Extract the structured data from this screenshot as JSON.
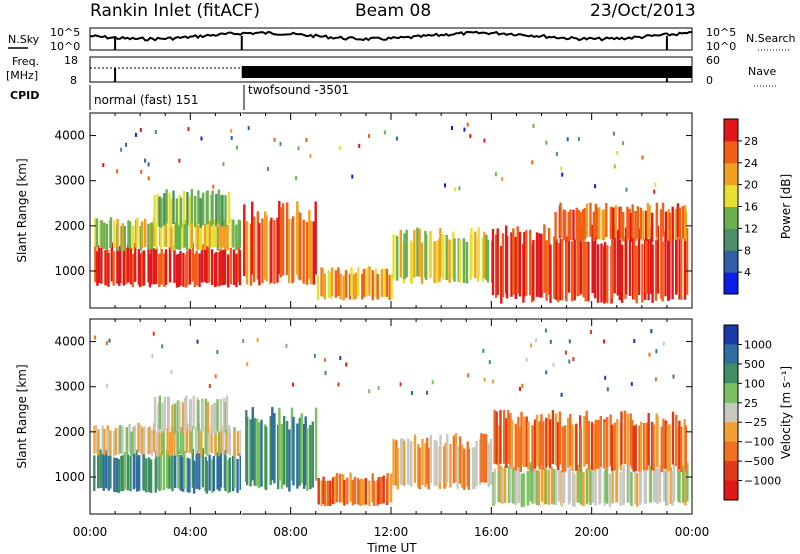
{
  "header": {
    "station": "Rankin Inlet (fitACF)",
    "beam": "Beam 08",
    "date": "23/Oct/2013"
  },
  "summary_panels": {
    "nsky_label": "N.Sky",
    "nsearch_label": "N.Search",
    "scale_top": "10^5",
    "scale_bottom": "10^0",
    "freq_label_line1": "Freq.",
    "freq_label_line2": "[MHz]",
    "freq_top": "18",
    "freq_bottom": "8",
    "nave_label": "Nave",
    "nave_top": "60",
    "nave_bottom": "0",
    "cpid_label": "CPID",
    "cpid_segments": [
      {
        "label": "normal (fast) 151",
        "start_hour": 0,
        "end_hour": 6.05
      },
      {
        "label": "twofsound -3501",
        "start_hour": 6.05,
        "end_hour": 24
      }
    ]
  },
  "chart_data": [
    {
      "type": "heatmap",
      "name": "power",
      "ylabel": "Slant Range [km]",
      "xlabel": "",
      "xlim": [
        0,
        24
      ],
      "ylim": [
        180,
        4500
      ],
      "yticks": [
        1000,
        2000,
        3000,
        4000
      ],
      "colorbar": {
        "label": "Power [dB]",
        "ticks": [
          "4",
          "8",
          "12",
          "16",
          "20",
          "24",
          "28"
        ],
        "colors": [
          "#0a1ee6",
          "#2e5fa8",
          "#4a8f6a",
          "#6ab04f",
          "#e8e030",
          "#f0a020",
          "#f06018",
          "#e01818"
        ]
      },
      "regions": [
        {
          "t0": 0.1,
          "t1": 6.0,
          "r0": 700,
          "r1": 1500,
          "level": 7
        },
        {
          "t0": 0.1,
          "t1": 6.0,
          "r0": 1500,
          "r1": 2100,
          "level": 4
        },
        {
          "t0": 2.5,
          "t1": 5.5,
          "r0": 2000,
          "r1": 2700,
          "level": 3
        },
        {
          "t0": 6.1,
          "t1": 9.0,
          "r0": 800,
          "r1": 2300,
          "level": 6
        },
        {
          "t0": 9.0,
          "t1": 12.0,
          "r0": 400,
          "r1": 1000,
          "level": 5
        },
        {
          "t0": 12.0,
          "t1": 16.0,
          "r0": 800,
          "r1": 1800,
          "level": 4
        },
        {
          "t0": 16.0,
          "t1": 23.8,
          "r0": 400,
          "r1": 1800,
          "level": 7
        },
        {
          "t0": 18.5,
          "t1": 23.8,
          "r0": 1700,
          "r1": 2400,
          "level": 6
        }
      ]
    },
    {
      "type": "heatmap",
      "name": "velocity",
      "ylabel": "Slant Range [km]",
      "xlabel": "Time UT",
      "xlim": [
        0,
        24
      ],
      "ylim": [
        180,
        4500
      ],
      "yticks": [
        1000,
        2000,
        3000,
        4000
      ],
      "xtick_labels": [
        "00:00",
        "04:00",
        "08:00",
        "12:00",
        "16:00",
        "20:00",
        "00:00"
      ],
      "xticks_hours": [
        0,
        4,
        8,
        12,
        16,
        20,
        24
      ],
      "colorbar": {
        "label": "Velocity [m s⁻¹]",
        "ticks": [
          "1000",
          "500",
          "100",
          "25",
          "−25",
          "−100",
          "−500",
          "−1000"
        ],
        "colors": [
          "#1a3aa8",
          "#2e6ea0",
          "#3f8f62",
          "#7ac060",
          "#c8c8c0",
          "#f0a030",
          "#f07020",
          "#e03818",
          "#e01818"
        ]
      },
      "regions": [
        {
          "t0": 0.1,
          "t1": 6.0,
          "r0": 700,
          "r1": 1500,
          "level": 2
        },
        {
          "t0": 0.1,
          "t1": 6.0,
          "r0": 1500,
          "r1": 2100,
          "level": 4
        },
        {
          "t0": 2.5,
          "t1": 5.5,
          "r0": 2000,
          "r1": 2700,
          "level": 4
        },
        {
          "t0": 6.1,
          "t1": 9.0,
          "r0": 800,
          "r1": 2300,
          "level": 2
        },
        {
          "t0": 9.0,
          "t1": 12.0,
          "r0": 400,
          "r1": 1000,
          "level": 6
        },
        {
          "t0": 12.0,
          "t1": 16.0,
          "r0": 800,
          "r1": 1800,
          "level": 5
        },
        {
          "t0": 16.0,
          "t1": 23.8,
          "r0": 400,
          "r1": 1200,
          "level": 4
        },
        {
          "t0": 16.0,
          "t1": 23.8,
          "r0": 1200,
          "r1": 2300,
          "level": 6
        }
      ]
    }
  ]
}
